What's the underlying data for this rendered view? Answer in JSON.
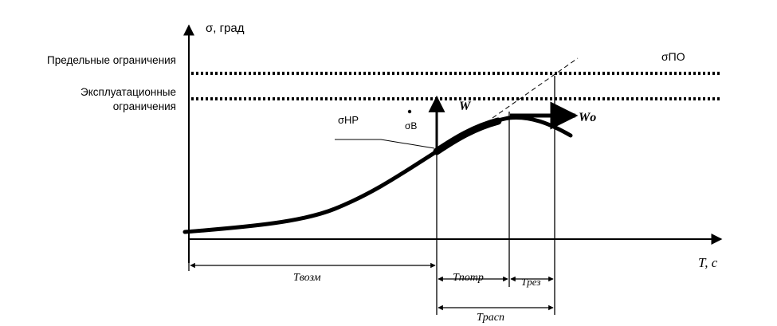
{
  "labels": {
    "y_axis": "σ, град",
    "x_axis": "T, с",
    "limit_ultimate": "Предельные ограничения",
    "limit_operational_1": "Эксплуатационные",
    "limit_operational_2": "ограничения",
    "sigma_po": "σПО",
    "sigma_hr": "σНР",
    "sigma_b": "σВ",
    "w": "W",
    "w0": "Wо",
    "t_vozm": "Tвозм",
    "t_potr": "Tпотр",
    "t_rez": "Tрез",
    "t_rasp": "Tрасп"
  }
}
